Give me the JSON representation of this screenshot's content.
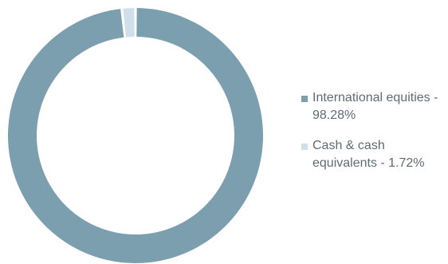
{
  "chart_data": {
    "type": "pie",
    "variant": "donut",
    "title": "",
    "legend_position": "right",
    "slices": [
      {
        "label": "International equities - 98.28%",
        "value": 98.28,
        "color": "#7c9fb0"
      },
      {
        "label": "Cash & cash equivalents - 1.72%",
        "value": 1.72,
        "color": "#cfe0ea"
      }
    ]
  }
}
